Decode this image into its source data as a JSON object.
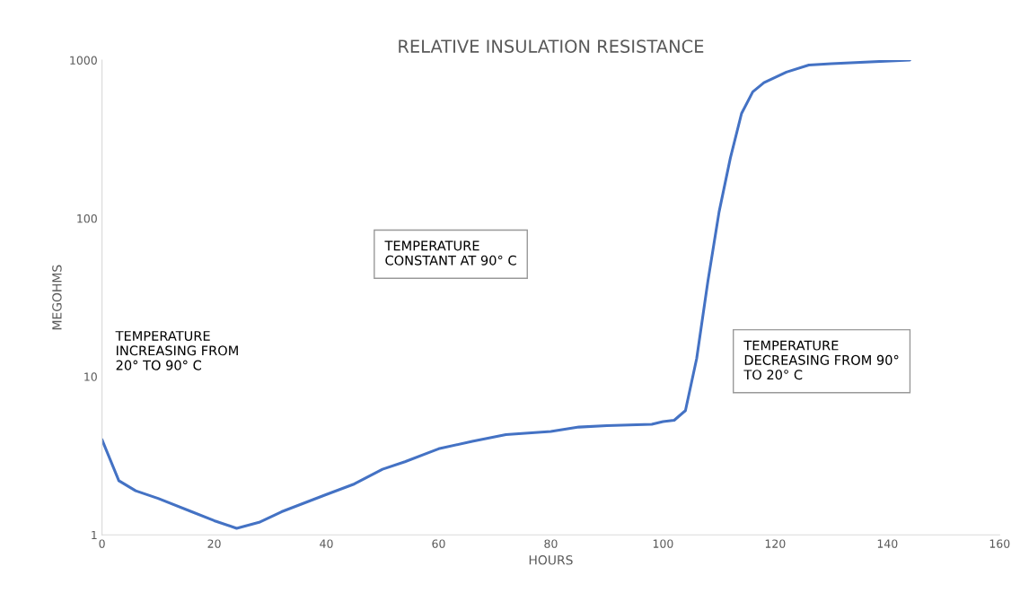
{
  "chart_data": {
    "type": "line",
    "title": "RELATIVE INSULATION RESISTANCE",
    "xlabel": "HOURS",
    "ylabel": "MEGOHMS",
    "x": [
      0,
      3,
      6,
      10,
      16,
      20,
      24,
      28,
      32,
      40,
      45,
      50,
      54,
      60,
      66,
      72,
      80,
      85,
      90,
      98,
      100,
      102,
      104,
      106,
      108,
      110,
      112,
      114,
      116,
      118,
      122,
      126,
      130,
      144
    ],
    "series": [
      {
        "color": "#4472c4",
        "values": [
          4.0,
          2.2,
          1.9,
          1.7,
          1.4,
          1.23,
          1.1,
          1.2,
          1.4,
          1.8,
          2.1,
          2.6,
          2.9,
          3.5,
          3.9,
          4.3,
          4.5,
          4.8,
          4.9,
          5.0,
          5.2,
          5.3,
          6.1,
          13,
          40,
          110,
          240,
          460,
          630,
          720,
          840,
          930,
          950,
          1000
        ]
      }
    ],
    "log": "y",
    "xlim": [
      0,
      160
    ],
    "xticks": [
      0,
      20,
      40,
      60,
      80,
      100,
      120,
      140,
      160
    ],
    "ylim": [
      1,
      1000
    ],
    "yticks": [
      1,
      10,
      100,
      1000
    ],
    "grid": false,
    "marker": "none",
    "line_style": "solid",
    "annotations": [
      "TEMPERATURE\nINCREASING FROM\n20° TO 90° C",
      "TEMPERATURE\nCONSTANT AT 90° C",
      "TEMPERATURE\nDECREASING FROM 90°\nTO 20° C"
    ]
  }
}
